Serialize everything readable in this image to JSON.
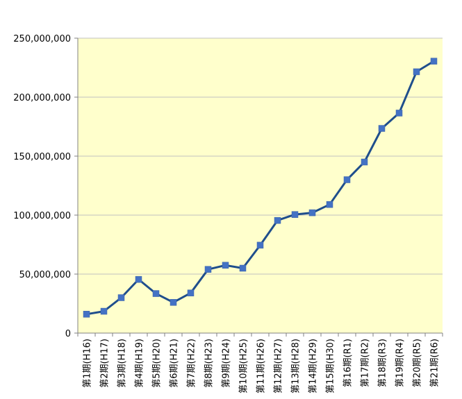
{
  "chart_data": {
    "type": "line",
    "title": "",
    "xlabel": "",
    "ylabel": "",
    "categories": [
      "第1期(H16)",
      "第2期(H17)",
      "第3期(H18)",
      "第4期(H19)",
      "第5期(H20)",
      "第6期(H21)",
      "第7期(H22)",
      "第8期(H23)",
      "第9期(H24)",
      "第10期(H25)",
      "第11期(H26)",
      "第12期(H27)",
      "第13期(H28)",
      "第14期(H29)",
      "第15期(H30)",
      "第16期(R1)",
      "第17期(R2)",
      "第18期(R3)",
      "第19期(R4)",
      "第20期(R5)",
      "第21期(R6)"
    ],
    "series": [
      {
        "values": [
          16000000,
          18500000,
          30000000,
          45500000,
          33500000,
          26000000,
          34000000,
          54000000,
          57500000,
          55000000,
          74500000,
          95500000,
          100500000,
          102000000,
          109000000,
          130000000,
          145000000,
          173500000,
          186500000,
          221500000,
          230500000
        ]
      }
    ],
    "ylim": [
      0,
      250000000
    ],
    "y_ticks": [
      "0",
      "50,000,000",
      "100,000,000",
      "150,000,000",
      "200,000,000",
      "250,000,000"
    ],
    "y_tick_values": [
      0,
      50000000,
      100000000,
      150000000,
      200000000,
      250000000
    ],
    "grid": true,
    "legend": "none",
    "colors": {
      "plot_bg": "#ffffcc",
      "line": "#1f4e8c",
      "marker": "#4472c4",
      "grid": "#c0c0c0",
      "axis": "#808080"
    }
  }
}
